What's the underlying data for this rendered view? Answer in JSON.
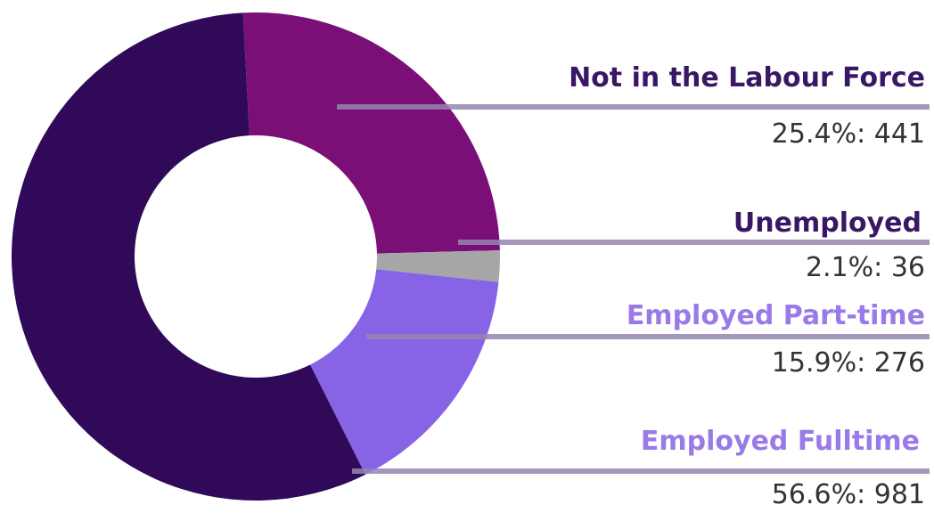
{
  "chart_data": {
    "type": "pie",
    "categories": [
      "Not in the Labour Force",
      "Unemployed",
      "Employed Part-time",
      "Employed Fulltime"
    ],
    "values": [
      441,
      36,
      276,
      981
    ],
    "percent_labels": [
      "25.4%: 441",
      "2.1%: 36",
      "15.9%: 276",
      "56.6%: 981"
    ],
    "slice_colors": [
      "#7A0F78",
      "#A6A6A6",
      "#8764E6",
      "#300A58"
    ],
    "label_colors": [
      "#3A1765",
      "#3A1765",
      "#9A7AE8",
      "#9A7AE8"
    ],
    "hole": "donut",
    "title": "",
    "legend": "labels-right"
  }
}
